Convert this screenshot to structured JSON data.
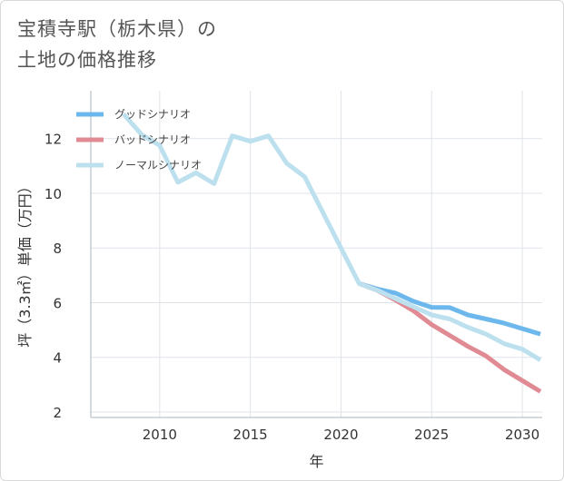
{
  "title_line1": "宝積寺駅（栃木県）の",
  "title_line2": "土地の価格推移",
  "chart_data": {
    "type": "line",
    "title": "宝積寺駅（栃木県）の土地の価格推移",
    "xlabel": "年",
    "ylabel": "坪（3.3㎡）単価（万円）",
    "xlim": [
      2006.2,
      2031.1
    ],
    "ylim": [
      1.8,
      13.75
    ],
    "x_ticks": [
      2010,
      2015,
      2020,
      2025,
      2030
    ],
    "y_ticks": [
      2,
      4,
      6,
      8,
      10,
      12
    ],
    "legend_position": "top-left",
    "series": [
      {
        "name": "グッドシナリオ",
        "color": "#6cb8ec",
        "x": [
          2021,
          2022,
          2023,
          2024,
          2025,
          2026,
          2027,
          2028,
          2029,
          2030,
          2031
        ],
        "values": [
          6.7,
          6.5,
          6.35,
          6.05,
          5.83,
          5.82,
          5.55,
          5.4,
          5.25,
          5.05,
          4.85
        ]
      },
      {
        "name": "バッドシナリオ",
        "color": "#e08a93",
        "x": [
          2021,
          2022,
          2023,
          2024,
          2025,
          2026,
          2027,
          2028,
          2029,
          2030,
          2031
        ],
        "values": [
          6.7,
          6.45,
          6.1,
          5.7,
          5.2,
          4.8,
          4.4,
          4.05,
          3.55,
          3.15,
          2.75
        ]
      },
      {
        "name": "ノーマルシナリオ",
        "color": "#bde0ef",
        "x": [
          2008,
          2009,
          2010,
          2011,
          2012,
          2013,
          2014,
          2015,
          2016,
          2017,
          2018,
          2019,
          2020,
          2021,
          2022,
          2023,
          2024,
          2025,
          2026,
          2027,
          2028,
          2029,
          2030,
          2031
        ],
        "values": [
          12.9,
          12.15,
          11.75,
          10.4,
          10.75,
          10.35,
          12.1,
          11.9,
          12.1,
          11.1,
          10.6,
          9.3,
          8.0,
          6.7,
          6.45,
          6.15,
          5.85,
          5.55,
          5.4,
          5.1,
          4.85,
          4.5,
          4.3,
          3.9
        ]
      }
    ]
  }
}
